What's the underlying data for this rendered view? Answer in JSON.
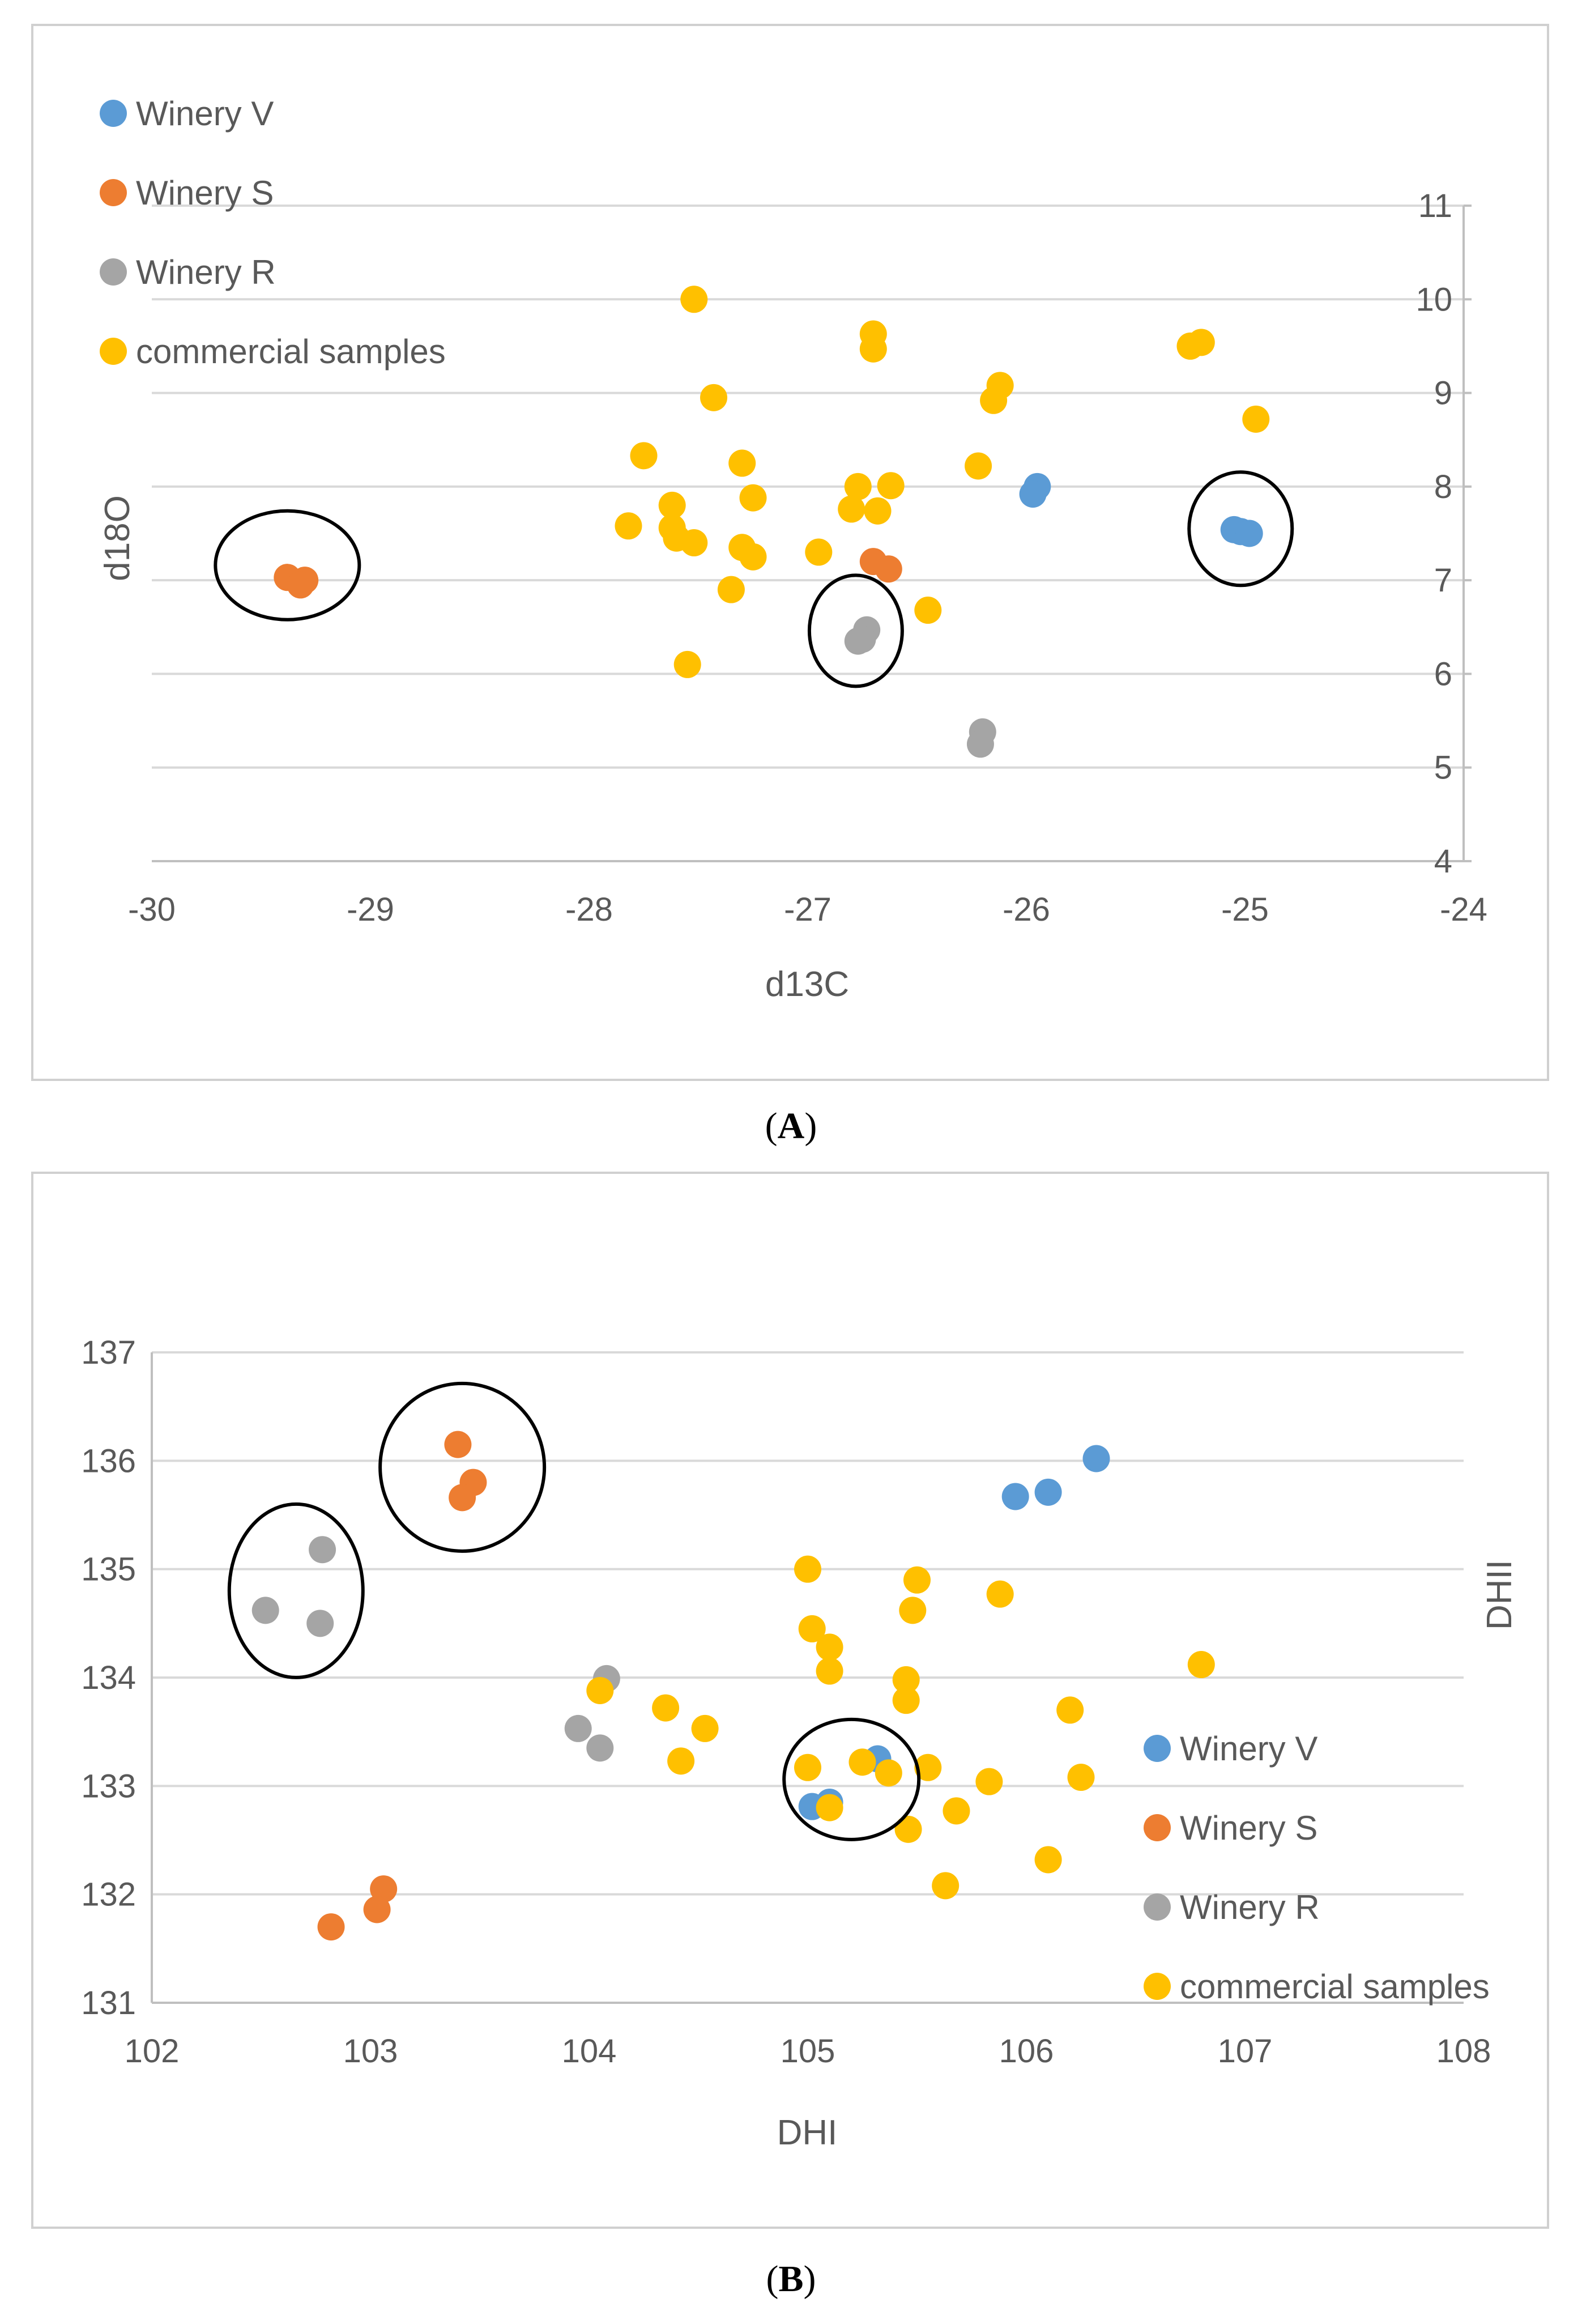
{
  "figure": {
    "caption_a": "A",
    "caption_b": "B"
  },
  "chart_data": [
    {
      "id": "A",
      "type": "scatter",
      "title": "",
      "xlabel": "d13C",
      "ylabel": "d18O",
      "xlim": [
        -30,
        -24
      ],
      "ylim": [
        4,
        11
      ],
      "xticks": [
        -30,
        -29,
        -28,
        -27,
        -26,
        -25,
        -24
      ],
      "yticks": [
        4,
        5,
        6,
        7,
        8,
        9,
        10,
        11
      ],
      "xtick_labels": [
        "-30",
        "-29",
        "-28",
        "-27",
        "-26",
        "-25",
        "-24"
      ],
      "ytick_labels": [
        "4",
        "5",
        "6",
        "7",
        "8",
        "9",
        "10",
        "11"
      ],
      "grid": "horizontal",
      "y_axis_side": "right",
      "x_axis_crosses_at": -24,
      "legend_position": "top-left",
      "series": [
        {
          "name": "Winery V",
          "color": "#5B9BD5",
          "x": [
            -25.95,
            -25.97,
            -25.05,
            -25.02,
            -24.98
          ],
          "y": [
            8.0,
            7.92,
            7.54,
            7.52,
            7.5
          ]
        },
        {
          "name": "Winery S",
          "color": "#ED7D31",
          "x": [
            -29.38,
            -29.3,
            -29.32,
            -26.7,
            -26.63
          ],
          "y": [
            7.03,
            7.0,
            6.95,
            7.2,
            7.12
          ]
        },
        {
          "name": "Winery R",
          "color": "#A5A5A5",
          "x": [
            -26.77,
            -26.73,
            -26.75,
            -26.2,
            -26.21
          ],
          "y": [
            6.35,
            6.47,
            6.37,
            5.38,
            5.25
          ]
        },
        {
          "name": "commercial samples",
          "color": "#FFC000",
          "x": [
            -27.52,
            -26.7,
            -26.7,
            -27.43,
            -26.12,
            -26.15,
            -25.25,
            -25.2,
            -24.95,
            -27.75,
            -27.3,
            -26.77,
            -26.62,
            -27.25,
            -26.22,
            -27.62,
            -26.8,
            -26.68,
            -27.82,
            -27.62,
            -27.6,
            -27.52,
            -27.3,
            -27.25,
            -26.95,
            -27.35,
            -26.45,
            -27.55
          ],
          "y": [
            10.0,
            9.63,
            9.47,
            8.95,
            9.08,
            8.92,
            9.5,
            9.54,
            8.72,
            8.33,
            8.25,
            8.0,
            8.01,
            7.88,
            8.22,
            7.8,
            7.76,
            7.74,
            7.58,
            7.56,
            7.45,
            7.4,
            7.35,
            7.25,
            7.3,
            6.9,
            6.68,
            6.1
          ]
        }
      ],
      "annotations": [
        {
          "type": "ellipse",
          "around": "Winery S cluster",
          "center": [
            -29.38,
            7.16
          ]
        },
        {
          "type": "ellipse",
          "around": "Winery R cluster",
          "center": [
            -26.78,
            6.46
          ]
        },
        {
          "type": "ellipse",
          "around": "Winery V cluster",
          "center": [
            -25.02,
            7.55
          ]
        }
      ]
    },
    {
      "id": "B",
      "type": "scatter",
      "title": "",
      "xlabel": "DHI",
      "ylabel": "DHII",
      "xlim": [
        102,
        108
      ],
      "ylim": [
        131,
        137
      ],
      "xticks": [
        102,
        103,
        104,
        105,
        106,
        107,
        108
      ],
      "yticks": [
        131,
        132,
        133,
        134,
        135,
        136,
        137
      ],
      "xtick_labels": [
        "102",
        "103",
        "104",
        "105",
        "106",
        "107",
        "108"
      ],
      "ytick_labels": [
        "131",
        "132",
        "133",
        "134",
        "135",
        "136",
        "137"
      ],
      "grid": "horizontal",
      "y_axis_title_side": "right",
      "legend_position": "bottom-right",
      "series": [
        {
          "name": "Winery V",
          "color": "#5B9BD5",
          "x": [
            106.32,
            106.1,
            105.95,
            105.32,
            105.02,
            105.1
          ],
          "y": [
            136.02,
            135.71,
            135.67,
            133.25,
            132.81,
            132.85
          ]
        },
        {
          "name": "Winery S",
          "color": "#ED7D31",
          "x": [
            103.4,
            103.47,
            103.42,
            103.06,
            103.03,
            102.82
          ],
          "y": [
            136.15,
            135.8,
            135.66,
            132.05,
            131.86,
            131.7
          ]
        },
        {
          "name": "Winery R",
          "color": "#A5A5A5",
          "x": [
            102.78,
            102.52,
            102.77,
            104.08,
            103.95,
            104.05
          ],
          "y": [
            135.18,
            134.62,
            134.5,
            133.99,
            133.53,
            133.35
          ]
        },
        {
          "name": "commercial samples",
          "color": "#FFC000",
          "x": [
            105.0,
            105.5,
            105.88,
            105.02,
            105.48,
            105.1,
            105.1,
            104.05,
            105.45,
            106.8,
            104.35,
            104.53,
            105.45,
            106.2,
            104.42,
            105.0,
            105.25,
            105.37,
            105.55,
            105.83,
            106.25,
            105.1,
            105.68,
            105.46,
            106.1,
            105.63
          ],
          "y": [
            135.0,
            134.9,
            134.77,
            134.45,
            134.62,
            134.28,
            134.06,
            133.88,
            133.98,
            134.12,
            133.72,
            133.53,
            133.79,
            133.7,
            133.23,
            133.17,
            133.22,
            133.12,
            133.17,
            133.04,
            133.08,
            132.8,
            132.77,
            132.6,
            132.32,
            132.08
          ]
        }
      ],
      "annotations": [
        {
          "type": "ellipse",
          "around": "Winery R cluster",
          "center": [
            102.66,
            134.8
          ]
        },
        {
          "type": "ellipse",
          "around": "Winery S cluster",
          "center": [
            103.42,
            135.94
          ]
        },
        {
          "type": "ellipse",
          "around": "mixed cluster",
          "center": [
            105.2,
            133.06
          ]
        }
      ]
    }
  ]
}
